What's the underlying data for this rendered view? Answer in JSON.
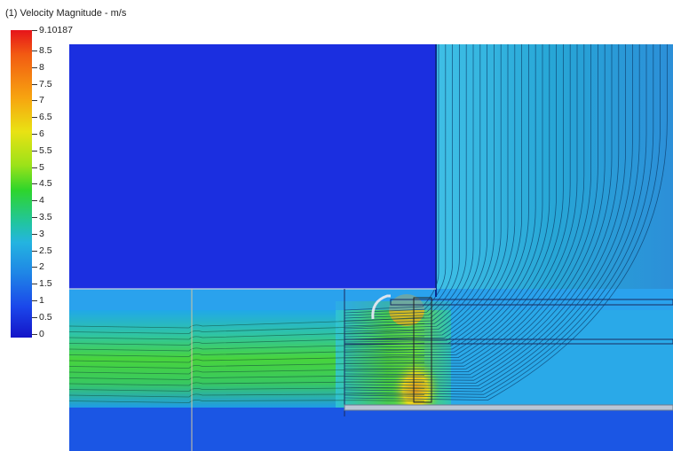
{
  "title": "(1) Velocity Magnitude - m/s",
  "legend": {
    "max_label": "9.10187",
    "ticks": [
      "8.5",
      "8",
      "7.5",
      "7",
      "6.5",
      "6",
      "5.5",
      "5",
      "4.5",
      "4",
      "3.5",
      "3",
      "2.5",
      "2",
      "1.5",
      "1",
      "0.5",
      "0"
    ],
    "colors": {
      "high": "#e6141a",
      "mid_high": "#f7a410",
      "mid": "#2ed52b",
      "mid_low": "#24b4e0",
      "low": "#1414c8"
    }
  },
  "viewport": {
    "background": "#1a3bd9",
    "stagnant_region_color": "#1a2fe0",
    "streamline_color": "#0c3d6b"
  }
}
